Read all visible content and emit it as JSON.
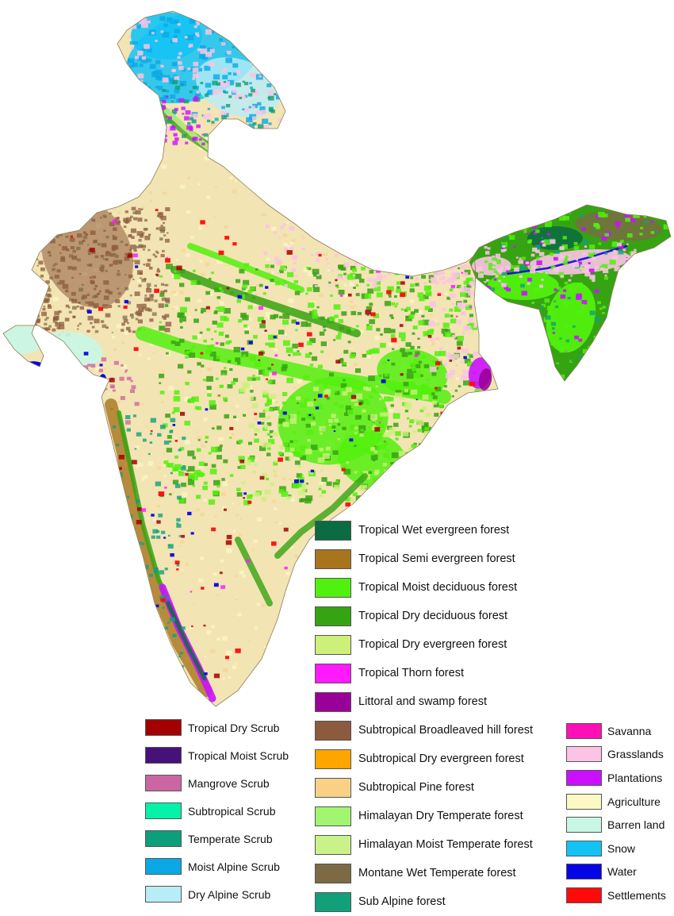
{
  "map": {
    "base_color": "#f3e4b4",
    "outline_color": "#8a7f5a"
  },
  "legend_forest": [
    {
      "label": "Tropical Wet evergreen forest",
      "color": "#0b6b42"
    },
    {
      "label": "Tropical Semi evergreen forest",
      "color": "#a8741e"
    },
    {
      "label": "Tropical Moist deciduous forest",
      "color": "#52f00e"
    },
    {
      "label": "Tropical Dry deciduous forest",
      "color": "#36a312"
    },
    {
      "label": "Tropical Dry evergreen forest",
      "color": "#ccf07a"
    },
    {
      "label": "Tropical Thorn forest",
      "color": "#ff1aff"
    },
    {
      "label": "Littoral and swamp forest",
      "color": "#990099"
    },
    {
      "label": "Subtropical Broadleaved hill forest",
      "color": "#8c5a3c"
    },
    {
      "label": "Subtropical Dry evergreen forest",
      "color": "#ffa500"
    },
    {
      "label": "Subtropical Pine forest",
      "color": "#f8d187"
    },
    {
      "label": "Himalayan Dry Temperate forest",
      "color": "#a2f570"
    },
    {
      "label": "Himalayan Moist Temperate forest",
      "color": "#c9f28a"
    },
    {
      "label": "Montane Wet Temperate forest",
      "color": "#7d6a45"
    },
    {
      "label": "Sub Alpine forest",
      "color": "#12a07a"
    }
  ],
  "legend_scrub": [
    {
      "label": "Tropical Dry Scrub",
      "color": "#a50000"
    },
    {
      "label": "Tropical Moist Scrub",
      "color": "#45127a"
    },
    {
      "label": "Mangrove Scrub",
      "color": "#cc66a3"
    },
    {
      "label": "Subtropical Scrub",
      "color": "#05f2a8"
    },
    {
      "label": "Temperate Scrub",
      "color": "#0f9e7c"
    },
    {
      "label": "Moist Alpine Scrub",
      "color": "#0aa8e6"
    },
    {
      "label": "Dry Alpine Scrub",
      "color": "#b8ecf7"
    }
  ],
  "legend_landcover": [
    {
      "label": "Savanna",
      "color": "#ff0fb8"
    },
    {
      "label": "Grasslands",
      "color": "#fcc3e4"
    },
    {
      "label": "Plantations",
      "color": "#cc0fff"
    },
    {
      "label": "Agriculture",
      "color": "#fcf9c5"
    },
    {
      "label": "Barren land",
      "color": "#c9f7e6"
    },
    {
      "label": "Snow",
      "color": "#14c3f5"
    },
    {
      "label": "Water",
      "color": "#0505e6"
    },
    {
      "label": "Settlements",
      "color": "#ff0a0a"
    }
  ]
}
